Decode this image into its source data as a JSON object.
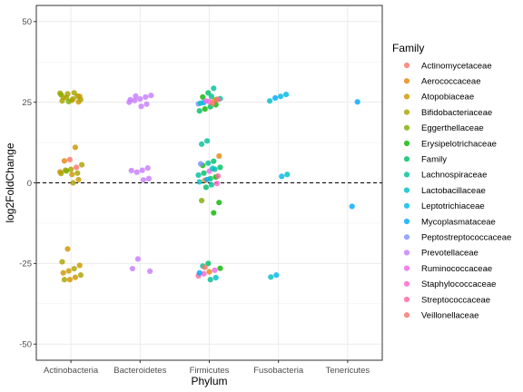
{
  "chart_data": {
    "type": "scatter",
    "title": "",
    "xlabel": "Phylum",
    "ylabel": "log2FoldChange",
    "ylim": [
      -55,
      55
    ],
    "yticks": [
      -50,
      -25,
      0,
      25,
      50
    ],
    "categories": [
      "Actinobacteria",
      "Bacteroidetes",
      "Firmicutes",
      "Fusobacteria",
      "Tenericutes"
    ],
    "reference_line": {
      "y": 0,
      "style": "dashed"
    },
    "grid": true,
    "legend_title": "Family",
    "legend_position": "right",
    "families": [
      {
        "name": "Actinomycetaceae",
        "color": "#F8766D"
      },
      {
        "name": "Aerococcaceae",
        "color": "#E68613"
      },
      {
        "name": "Atopobiaceae",
        "color": "#CD9600"
      },
      {
        "name": "Bifidobacteriaceae",
        "color": "#ABA300"
      },
      {
        "name": "Eggerthellaceae",
        "color": "#7CAE00"
      },
      {
        "name": "Erysipelotrichaceae",
        "color": "#0CB702"
      },
      {
        "name": "Family",
        "color": "#00BE67"
      },
      {
        "name": "Lachnospiraceae",
        "color": "#00C19A"
      },
      {
        "name": "Lactobacillaceae",
        "color": "#00BFC4"
      },
      {
        "name": "Leptotrichiaceae",
        "color": "#00B8E7"
      },
      {
        "name": "Mycoplasmataceae",
        "color": "#00A9FF"
      },
      {
        "name": "Peptostreptococcaceae",
        "color": "#8494FF"
      },
      {
        "name": "Prevotellaceae",
        "color": "#C77CFF"
      },
      {
        "name": "Ruminococcaceae",
        "color": "#ED68ED"
      },
      {
        "name": "Staphylococcaceae",
        "color": "#FF61CC"
      },
      {
        "name": "Streptococcaceae",
        "color": "#FF68A1"
      },
      {
        "name": "Veillonellaceae",
        "color": "#F8766D"
      }
    ],
    "points": [
      {
        "x": "Actinobacteria",
        "y": 27.8,
        "family": "Bifidobacteriaceae"
      },
      {
        "x": "Actinobacteria",
        "y": 26.9,
        "family": "Bifidobacteriaceae"
      },
      {
        "x": "Actinobacteria",
        "y": 25.6,
        "family": "Atopobiaceae"
      },
      {
        "x": "Actinobacteria",
        "y": 26.4,
        "family": "Bifidobacteriaceae"
      },
      {
        "x": "Actinobacteria",
        "y": 27.3,
        "family": "Eggerthellaceae"
      },
      {
        "x": "Actinobacteria",
        "y": 25.1,
        "family": "Atopobiaceae"
      },
      {
        "x": "Actinobacteria",
        "y": 26.0,
        "family": "Bifidobacteriaceae"
      },
      {
        "x": "Actinobacteria",
        "y": 27.6,
        "family": "Bifidobacteriaceae"
      },
      {
        "x": "Actinobacteria",
        "y": 25.4,
        "family": "Bifidobacteriaceae"
      },
      {
        "x": "Actinobacteria",
        "y": 26.8,
        "family": "Atopobiaceae"
      },
      {
        "x": "Actinobacteria",
        "y": 27.9,
        "family": "Bifidobacteriaceae"
      },
      {
        "x": "Actinobacteria",
        "y": 25.2,
        "family": "Eggerthellaceae"
      },
      {
        "x": "Actinobacteria",
        "y": 26.5,
        "family": "Bifidobacteriaceae"
      },
      {
        "x": "Actinobacteria",
        "y": 25.8,
        "family": "Bifidobacteriaceae"
      },
      {
        "x": "Actinobacteria",
        "y": 11.0,
        "family": "Atopobiaceae"
      },
      {
        "x": "Actinobacteria",
        "y": 7.2,
        "family": "Actinomycetaceae"
      },
      {
        "x": "Actinobacteria",
        "y": 6.8,
        "family": "Aerococcaceae"
      },
      {
        "x": "Actinobacteria",
        "y": 5.6,
        "family": "Bifidobacteriaceae"
      },
      {
        "x": "Actinobacteria",
        "y": 4.8,
        "family": "Actinomycetaceae"
      },
      {
        "x": "Actinobacteria",
        "y": 4.2,
        "family": "Bifidobacteriaceae"
      },
      {
        "x": "Actinobacteria",
        "y": 3.9,
        "family": "Bifidobacteriaceae"
      },
      {
        "x": "Actinobacteria",
        "y": 3.4,
        "family": "Atopobiaceae"
      },
      {
        "x": "Actinobacteria",
        "y": 3.0,
        "family": "Bifidobacteriaceae"
      },
      {
        "x": "Actinobacteria",
        "y": 2.6,
        "family": "Atopobiaceae"
      },
      {
        "x": "Actinobacteria",
        "y": 3.7,
        "family": "Eggerthellaceae"
      },
      {
        "x": "Actinobacteria",
        "y": 2.9,
        "family": "Bifidobacteriaceae"
      },
      {
        "x": "Actinobacteria",
        "y": 1.0,
        "family": "Atopobiaceae"
      },
      {
        "x": "Actinobacteria",
        "y": 0.0,
        "family": "Bifidobacteriaceae"
      },
      {
        "x": "Actinobacteria",
        "y": -20.5,
        "family": "Atopobiaceae"
      },
      {
        "x": "Actinobacteria",
        "y": -24.5,
        "family": "Bifidobacteriaceae"
      },
      {
        "x": "Actinobacteria",
        "y": -25.6,
        "family": "Atopobiaceae"
      },
      {
        "x": "Actinobacteria",
        "y": -26.6,
        "family": "Bifidobacteriaceae"
      },
      {
        "x": "Actinobacteria",
        "y": -27.3,
        "family": "Atopobiaceae"
      },
      {
        "x": "Actinobacteria",
        "y": -27.9,
        "family": "Atopobiaceae"
      },
      {
        "x": "Actinobacteria",
        "y": -28.6,
        "family": "Bifidobacteriaceae"
      },
      {
        "x": "Actinobacteria",
        "y": -29.3,
        "family": "Atopobiaceae"
      },
      {
        "x": "Actinobacteria",
        "y": -30.0,
        "family": "Atopobiaceae"
      },
      {
        "x": "Actinobacteria",
        "y": -30.0,
        "family": "Bifidobacteriaceae"
      },
      {
        "x": "Bacteroidetes",
        "y": 27.1,
        "family": "Prevotellaceae"
      },
      {
        "x": "Bacteroidetes",
        "y": 26.6,
        "family": "Prevotellaceae"
      },
      {
        "x": "Bacteroidetes",
        "y": 26.0,
        "family": "Prevotellaceae"
      },
      {
        "x": "Bacteroidetes",
        "y": 25.5,
        "family": "Prevotellaceae"
      },
      {
        "x": "Bacteroidetes",
        "y": 25.0,
        "family": "Prevotellaceae"
      },
      {
        "x": "Bacteroidetes",
        "y": 24.4,
        "family": "Prevotellaceae"
      },
      {
        "x": "Bacteroidetes",
        "y": 23.7,
        "family": "Prevotellaceae"
      },
      {
        "x": "Bacteroidetes",
        "y": 26.9,
        "family": "Prevotellaceae"
      },
      {
        "x": "Bacteroidetes",
        "y": 25.8,
        "family": "Prevotellaceae"
      },
      {
        "x": "Bacteroidetes",
        "y": 4.6,
        "family": "Prevotellaceae"
      },
      {
        "x": "Bacteroidetes",
        "y": 3.9,
        "family": "Prevotellaceae"
      },
      {
        "x": "Bacteroidetes",
        "y": 3.3,
        "family": "Prevotellaceae"
      },
      {
        "x": "Bacteroidetes",
        "y": 3.8,
        "family": "Prevotellaceae"
      },
      {
        "x": "Bacteroidetes",
        "y": 1.3,
        "family": "Prevotellaceae"
      },
      {
        "x": "Bacteroidetes",
        "y": 0.9,
        "family": "Prevotellaceae"
      },
      {
        "x": "Bacteroidetes",
        "y": -23.6,
        "family": "Prevotellaceae"
      },
      {
        "x": "Bacteroidetes",
        "y": -26.6,
        "family": "Prevotellaceae"
      },
      {
        "x": "Bacteroidetes",
        "y": -27.4,
        "family": "Prevotellaceae"
      },
      {
        "x": "Firmicutes",
        "y": 29.3,
        "family": "Lachnospiraceae"
      },
      {
        "x": "Firmicutes",
        "y": 27.9,
        "family": "Family"
      },
      {
        "x": "Firmicutes",
        "y": 26.6,
        "family": "Erysipelotrichaceae"
      },
      {
        "x": "Firmicutes",
        "y": 26.1,
        "family": "Lachnospiraceae"
      },
      {
        "x": "Firmicutes",
        "y": 25.6,
        "family": "Aerococcaceae"
      },
      {
        "x": "Firmicutes",
        "y": 25.2,
        "family": "Staphylococcaceae"
      },
      {
        "x": "Firmicutes",
        "y": 24.9,
        "family": "Mycoplasmataceae"
      },
      {
        "x": "Firmicutes",
        "y": 24.5,
        "family": "Peptostreptococcaceae"
      },
      {
        "x": "Firmicutes",
        "y": 24.2,
        "family": "Erysipelotrichaceae"
      },
      {
        "x": "Firmicutes",
        "y": 23.6,
        "family": "Family"
      },
      {
        "x": "Firmicutes",
        "y": 22.9,
        "family": "Erysipelotrichaceae"
      },
      {
        "x": "Firmicutes",
        "y": 22.3,
        "family": "Family"
      },
      {
        "x": "Firmicutes",
        "y": 25.9,
        "family": "Atopobiaceae"
      },
      {
        "x": "Firmicutes",
        "y": 26.8,
        "family": "Lachnospiraceae"
      },
      {
        "x": "Firmicutes",
        "y": 25.4,
        "family": "Ruminococcaceae"
      },
      {
        "x": "Firmicutes",
        "y": 24.7,
        "family": "Lactobacillaceae"
      },
      {
        "x": "Firmicutes",
        "y": 25.8,
        "family": "Streptococcaceae"
      },
      {
        "x": "Firmicutes",
        "y": 24.6,
        "family": "Veillonellaceae"
      },
      {
        "x": "Firmicutes",
        "y": 13.0,
        "family": "Lachnospiraceae"
      },
      {
        "x": "Firmicutes",
        "y": 12.0,
        "family": "Lachnospiraceae"
      },
      {
        "x": "Firmicutes",
        "y": 8.3,
        "family": "Aerococcaceae"
      },
      {
        "x": "Firmicutes",
        "y": 6.7,
        "family": "Family"
      },
      {
        "x": "Firmicutes",
        "y": 6.1,
        "family": "Lachnospiraceae"
      },
      {
        "x": "Firmicutes",
        "y": 5.4,
        "family": "Erysipelotrichaceae"
      },
      {
        "x": "Firmicutes",
        "y": 4.8,
        "family": "Family"
      },
      {
        "x": "Firmicutes",
        "y": 4.2,
        "family": "Lachnospiraceae"
      },
      {
        "x": "Firmicutes",
        "y": 3.6,
        "family": "Ruminococcaceae"
      },
      {
        "x": "Firmicutes",
        "y": 3.0,
        "family": "Family"
      },
      {
        "x": "Firmicutes",
        "y": 2.4,
        "family": "Lachnospiraceae"
      },
      {
        "x": "Firmicutes",
        "y": 1.8,
        "family": "Erysipelotrichaceae"
      },
      {
        "x": "Firmicutes",
        "y": 1.3,
        "family": "Family"
      },
      {
        "x": "Firmicutes",
        "y": 0.8,
        "family": "Aerococcaceae"
      },
      {
        "x": "Firmicutes",
        "y": 0.3,
        "family": "Lactobacillaceae"
      },
      {
        "x": "Firmicutes",
        "y": -0.2,
        "family": "Staphylococcaceae"
      },
      {
        "x": "Firmicutes",
        "y": -0.6,
        "family": "Lachnospiraceae"
      },
      {
        "x": "Firmicutes",
        "y": -1.4,
        "family": "Family"
      },
      {
        "x": "Firmicutes",
        "y": 5.9,
        "family": "Peptostreptococcaceae"
      },
      {
        "x": "Firmicutes",
        "y": 2.1,
        "family": "Streptococcaceae"
      },
      {
        "x": "Firmicutes",
        "y": 4.5,
        "family": "Lactobacillaceae"
      },
      {
        "x": "Firmicutes",
        "y": 1.0,
        "family": "Mycoplasmataceae"
      },
      {
        "x": "Firmicutes",
        "y": -5.5,
        "family": "Eggerthellaceae"
      },
      {
        "x": "Firmicutes",
        "y": -6.1,
        "family": "Erysipelotrichaceae"
      },
      {
        "x": "Firmicutes",
        "y": -9.3,
        "family": "Erysipelotrichaceae"
      },
      {
        "x": "Firmicutes",
        "y": -25.0,
        "family": "Family"
      },
      {
        "x": "Firmicutes",
        "y": -25.8,
        "family": "Lachnospiraceae"
      },
      {
        "x": "Firmicutes",
        "y": -26.5,
        "family": "Erysipelotrichaceae"
      },
      {
        "x": "Firmicutes",
        "y": -27.1,
        "family": "Ruminococcaceae"
      },
      {
        "x": "Firmicutes",
        "y": -27.6,
        "family": "Aerococcaceae"
      },
      {
        "x": "Firmicutes",
        "y": -28.2,
        "family": "Staphylococcaceae"
      },
      {
        "x": "Firmicutes",
        "y": -28.8,
        "family": "Streptococcaceae"
      },
      {
        "x": "Firmicutes",
        "y": -29.4,
        "family": "Lactobacillaceae"
      },
      {
        "x": "Firmicutes",
        "y": -30.0,
        "family": "Lachnospiraceae"
      },
      {
        "x": "Firmicutes",
        "y": -26.2,
        "family": "Veillonellaceae"
      },
      {
        "x": "Firmicutes",
        "y": -27.9,
        "family": "Mycoplasmataceae"
      },
      {
        "x": "Fusobacteria",
        "y": 27.4,
        "family": "Leptotrichiaceae"
      },
      {
        "x": "Fusobacteria",
        "y": 26.8,
        "family": "Leptotrichiaceae"
      },
      {
        "x": "Fusobacteria",
        "y": 26.3,
        "family": "Mycoplasmataceae"
      },
      {
        "x": "Fusobacteria",
        "y": 25.4,
        "family": "Lactobacillaceae"
      },
      {
        "x": "Fusobacteria",
        "y": 2.6,
        "family": "Lactobacillaceae"
      },
      {
        "x": "Fusobacteria",
        "y": 2.0,
        "family": "Leptotrichiaceae"
      },
      {
        "x": "Fusobacteria",
        "y": -28.6,
        "family": "Leptotrichiaceae"
      },
      {
        "x": "Fusobacteria",
        "y": -29.2,
        "family": "Lactobacillaceae"
      },
      {
        "x": "Tenericutes",
        "y": 25.1,
        "family": "Mycoplasmataceae"
      },
      {
        "x": "Tenericutes",
        "y": -7.3,
        "family": "Mycoplasmataceae"
      }
    ]
  }
}
